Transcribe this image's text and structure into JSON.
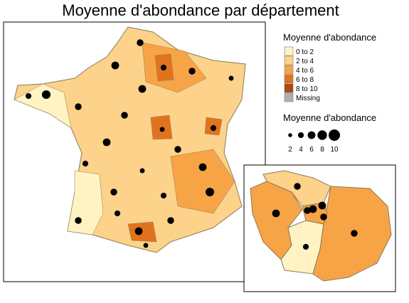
{
  "title": "Moyenne d'abondance par département",
  "legend": {
    "fill_title": "Moyenne d'abondance",
    "classes": [
      {
        "label": "0 to 2",
        "color": "#fff3c4"
      },
      {
        "label": "2 to 4",
        "color": "#fdd28a"
      },
      {
        "label": "4 to 6",
        "color": "#f7a446"
      },
      {
        "label": "6 to 8",
        "color": "#e2731e"
      },
      {
        "label": "8 to 10",
        "color": "#b3470f"
      },
      {
        "label": "Missing",
        "color": "#b0b0b0"
      }
    ],
    "size_title": "Moyenne d'abondance",
    "sizes": [
      2,
      4,
      6,
      8,
      10
    ]
  },
  "points": {
    "main": [
      5,
      6,
      4,
      5,
      3,
      6,
      5,
      7,
      4,
      5,
      3,
      4,
      6,
      5,
      4,
      3,
      6,
      5,
      4,
      7,
      5,
      4,
      3,
      5,
      6
    ],
    "inset": [
      5,
      6,
      6,
      5,
      6,
      5,
      4,
      5
    ]
  }
}
